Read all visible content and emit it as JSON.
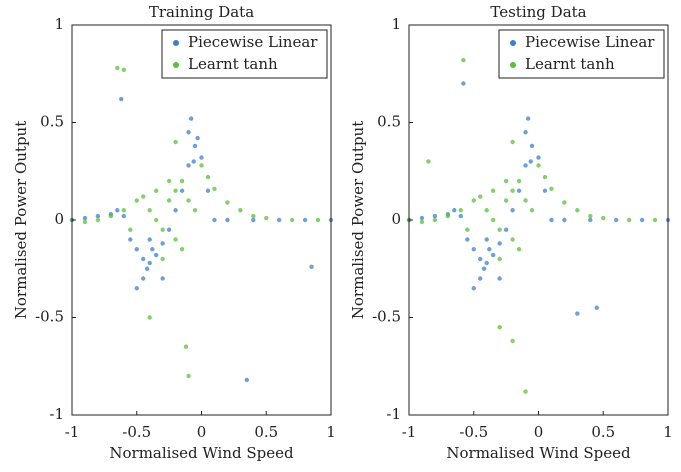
{
  "chart_data": [
    {
      "type": "scatter",
      "title": "Training Data",
      "xlabel": "Normalised Wind Speed",
      "ylabel": "Normalised Power Output",
      "xlim": [
        -1,
        1
      ],
      "ylim": [
        -1,
        1
      ],
      "xticks": [
        -1,
        -0.5,
        0,
        0.5,
        1
      ],
      "yticks": [
        -1,
        -0.5,
        0,
        0.5,
        1
      ],
      "legend": "upper right",
      "series": [
        {
          "name": "Piecewise Linear",
          "color": "#3f7fc6",
          "x": [
            -1,
            -0.9,
            -0.8,
            -0.7,
            -0.65,
            -0.6,
            -0.55,
            -0.5,
            -0.45,
            -0.4,
            -0.35,
            -0.3,
            -0.25,
            -0.2,
            -0.15,
            -0.1,
            -0.05,
            0,
            0.05,
            0.1,
            0.2,
            0.4,
            0.6,
            0.8,
            1,
            -0.45,
            -0.4,
            -0.1,
            -0.08,
            -0.62,
            0.85,
            0.35,
            -0.5,
            -0.3,
            -0.42,
            -0.38,
            -0.06,
            -0.03
          ],
          "values": [
            0,
            0.01,
            0.02,
            0.03,
            0.05,
            0.02,
            -0.1,
            -0.15,
            -0.2,
            -0.22,
            -0.18,
            -0.12,
            -0.05,
            0.05,
            0.15,
            0.28,
            0.38,
            0.32,
            0.15,
            0,
            0,
            0,
            0,
            0,
            0,
            -0.3,
            -0.1,
            0.45,
            0.52,
            0.62,
            -0.24,
            -0.82,
            -0.35,
            -0.3,
            -0.25,
            -0.15,
            0.3,
            0.42
          ]
        },
        {
          "name": "Learnt tanh",
          "color": "#5bbd3e",
          "x": [
            -1,
            -0.9,
            -0.8,
            -0.7,
            -0.6,
            -0.5,
            -0.45,
            -0.4,
            -0.35,
            -0.3,
            -0.25,
            -0.2,
            -0.15,
            -0.1,
            -0.05,
            0,
            0.05,
            0.1,
            0.2,
            0.3,
            0.4,
            0.5,
            0.7,
            0.9,
            -0.3,
            -0.2,
            -0.65,
            -0.6,
            -0.1,
            -0.12,
            -0.4,
            -0.2,
            -0.55,
            -0.25,
            -0.15,
            -0.35
          ],
          "values": [
            0,
            -0.01,
            0,
            0.02,
            0.05,
            0.1,
            0.12,
            0.05,
            0,
            -0.05,
            0.1,
            0.15,
            0.2,
            0.1,
            0.05,
            0.28,
            0.22,
            0.16,
            0.09,
            0.05,
            0.02,
            0.01,
            0,
            0,
            -0.2,
            -0.1,
            0.78,
            0.77,
            -0.8,
            -0.65,
            -0.5,
            0.4,
            -0.05,
            0.2,
            -0.15,
            0.15
          ]
        }
      ]
    },
    {
      "type": "scatter",
      "title": "Testing Data",
      "xlabel": "Normalised Wind Speed",
      "ylabel": "Normalised Power Output",
      "xlim": [
        -1,
        1
      ],
      "ylim": [
        -1,
        1
      ],
      "xticks": [
        -1,
        -0.5,
        0,
        0.5,
        1
      ],
      "yticks": [
        -1,
        -0.5,
        0,
        0.5,
        1
      ],
      "legend": "upper right",
      "series": [
        {
          "name": "Piecewise Linear",
          "color": "#3f7fc6",
          "x": [
            -1,
            -0.9,
            -0.8,
            -0.7,
            -0.65,
            -0.6,
            -0.55,
            -0.5,
            -0.45,
            -0.4,
            -0.35,
            -0.3,
            -0.25,
            -0.2,
            -0.15,
            -0.1,
            -0.05,
            0,
            0.05,
            0.1,
            0.2,
            0.4,
            0.6,
            0.8,
            1,
            -0.45,
            -0.4,
            -0.1,
            -0.08,
            -0.58,
            0.45,
            0.3,
            -0.5,
            -0.3,
            -0.42,
            -0.38,
            -0.06
          ],
          "values": [
            0,
            0.01,
            0.02,
            0.03,
            0.05,
            0.02,
            -0.1,
            -0.15,
            -0.2,
            -0.22,
            -0.18,
            -0.12,
            -0.05,
            0.05,
            0.15,
            0.28,
            0.38,
            0.32,
            0.15,
            0,
            0,
            0,
            0,
            0,
            0,
            -0.3,
            -0.1,
            0.45,
            0.52,
            0.7,
            -0.45,
            -0.48,
            -0.35,
            -0.3,
            -0.25,
            -0.15,
            0.3
          ]
        },
        {
          "name": "Learnt tanh",
          "color": "#5bbd3e",
          "x": [
            -1,
            -0.9,
            -0.8,
            -0.7,
            -0.6,
            -0.5,
            -0.45,
            -0.4,
            -0.35,
            -0.3,
            -0.25,
            -0.2,
            -0.15,
            -0.1,
            -0.05,
            0,
            0.05,
            0.1,
            0.2,
            0.3,
            0.4,
            0.5,
            0.7,
            0.9,
            -0.3,
            -0.2,
            -0.58,
            -0.85,
            -0.1,
            -0.2,
            -0.3,
            -0.2,
            -0.55,
            -0.25,
            -0.15,
            -0.35
          ],
          "values": [
            0,
            -0.01,
            0,
            0.02,
            0.05,
            0.1,
            0.12,
            0.05,
            0,
            -0.05,
            0.1,
            0.15,
            0.2,
            0.1,
            0.05,
            0.28,
            0.22,
            0.16,
            0.09,
            0.05,
            0.02,
            0.01,
            0,
            0,
            -0.2,
            -0.1,
            0.82,
            0.3,
            -0.88,
            -0.62,
            -0.55,
            0.4,
            -0.05,
            0.2,
            -0.15,
            0.15
          ]
        }
      ]
    }
  ]
}
